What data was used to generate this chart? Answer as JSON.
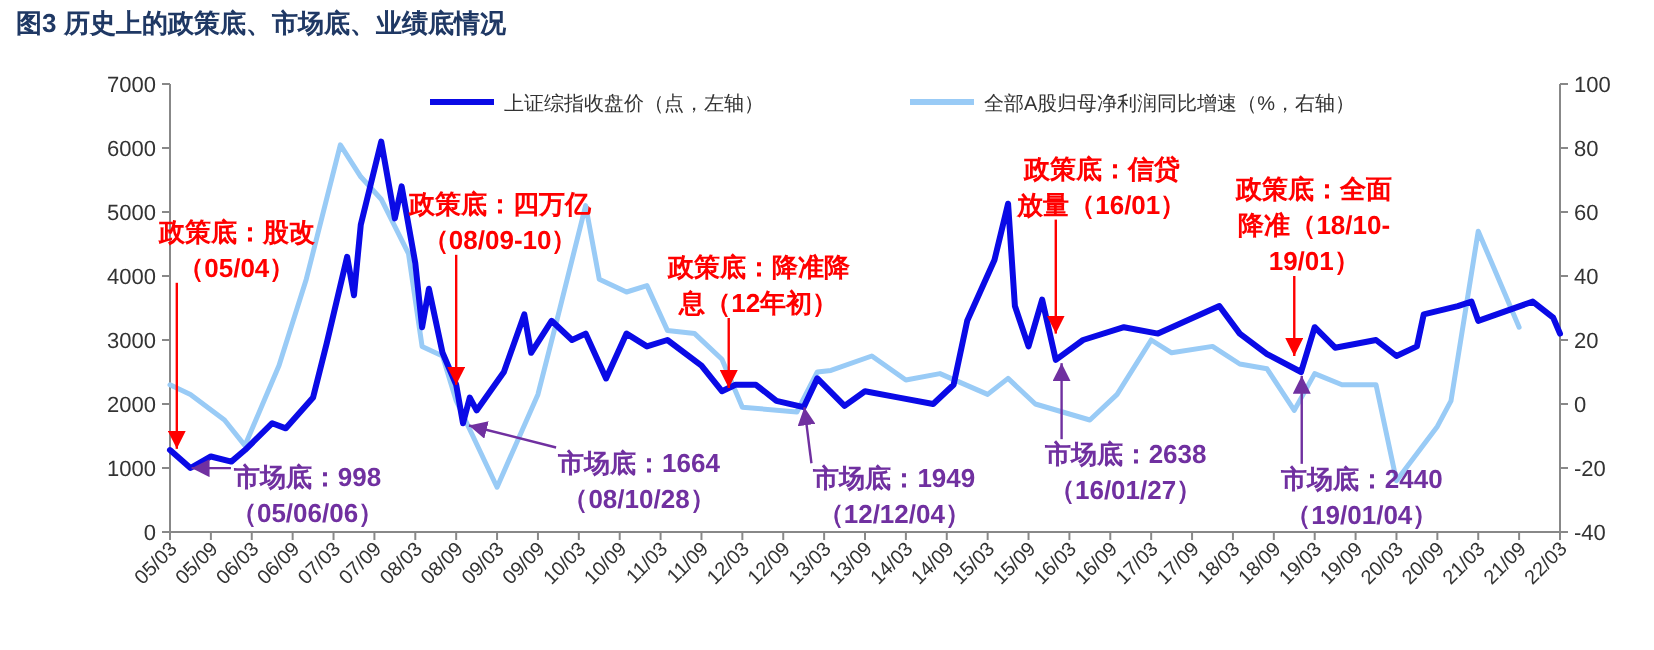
{
  "chart_data": {
    "type": "line",
    "title": "图3  历史上的政策底、市场底、业绩底情况",
    "xlim": [
      "2005-03",
      "2022-03"
    ],
    "xticks": [
      {
        "value": "2005-03",
        "label": "05/03"
      },
      {
        "value": "2005-09",
        "label": "05/09"
      },
      {
        "value": "2006-03",
        "label": "06/03"
      },
      {
        "value": "2006-09",
        "label": "06/09"
      },
      {
        "value": "2007-03",
        "label": "07/03"
      },
      {
        "value": "2007-09",
        "label": "07/09"
      },
      {
        "value": "2008-03",
        "label": "08/03"
      },
      {
        "value": "2008-09",
        "label": "08/09"
      },
      {
        "value": "2009-03",
        "label": "09/03"
      },
      {
        "value": "2009-09",
        "label": "09/09"
      },
      {
        "value": "2010-03",
        "label": "10/03"
      },
      {
        "value": "2010-09",
        "label": "10/09"
      },
      {
        "value": "2011-03",
        "label": "11/03"
      },
      {
        "value": "2011-09",
        "label": "11/09"
      },
      {
        "value": "2012-03",
        "label": "12/03"
      },
      {
        "value": "2012-09",
        "label": "12/09"
      },
      {
        "value": "2013-03",
        "label": "13/03"
      },
      {
        "value": "2013-09",
        "label": "13/09"
      },
      {
        "value": "2014-03",
        "label": "14/03"
      },
      {
        "value": "2014-09",
        "label": "14/09"
      },
      {
        "value": "2015-03",
        "label": "15/03"
      },
      {
        "value": "2015-09",
        "label": "15/09"
      },
      {
        "value": "2016-03",
        "label": "16/03"
      },
      {
        "value": "2016-09",
        "label": "16/09"
      },
      {
        "value": "2017-03",
        "label": "17/03"
      },
      {
        "value": "2017-09",
        "label": "17/09"
      },
      {
        "value": "2018-03",
        "label": "18/03"
      },
      {
        "value": "2018-09",
        "label": "18/09"
      },
      {
        "value": "2019-03",
        "label": "19/03"
      },
      {
        "value": "2019-09",
        "label": "19/09"
      },
      {
        "value": "2020-03",
        "label": "20/03"
      },
      {
        "value": "2020-09",
        "label": "20/09"
      },
      {
        "value": "2021-03",
        "label": "21/03"
      },
      {
        "value": "2021-09",
        "label": "21/09"
      },
      {
        "value": "2022-03",
        "label": "22/03"
      }
    ],
    "ylim": [
      0,
      7000
    ],
    "yticks": [
      0,
      1000,
      2000,
      3000,
      4000,
      5000,
      6000,
      7000
    ],
    "y2lim": [
      -40,
      100
    ],
    "y2ticks": [
      -40,
      -20,
      0,
      20,
      40,
      60,
      80,
      100
    ],
    "grid": false,
    "legend": "top",
    "marker": "none",
    "line_style": "solid",
    "series": [
      {
        "name": "上证综指收盘价（点，左轴）",
        "color": "#0a0ae6",
        "x": [
          "2005-03",
          "2005-06",
          "2005-09",
          "2005-12",
          "2006-02",
          "2006-06",
          "2006-08",
          "2006-12",
          "2007-02",
          "2007-05",
          "2007-06",
          "2007-07",
          "2007-10",
          "2007-12",
          "2008-01",
          "2008-03",
          "2008-04",
          "2008-05",
          "2008-07",
          "2008-09",
          "2008-10",
          "2008-11",
          "2008-12",
          "2009-04",
          "2009-07",
          "2009-08",
          "2009-11",
          "2010-02",
          "2010-04",
          "2010-07",
          "2010-10",
          "2011-01",
          "2011-04",
          "2011-09",
          "2011-12",
          "2012-02",
          "2012-05",
          "2012-08",
          "2012-12",
          "2013-02",
          "2013-06",
          "2013-09",
          "2014-02",
          "2014-07",
          "2014-10",
          "2014-12",
          "2015-04",
          "2015-06",
          "2015-07",
          "2015-09",
          "2015-11",
          "2016-01",
          "2016-05",
          "2016-11",
          "2017-04",
          "2018-01",
          "2018-04",
          "2018-08",
          "2019-01",
          "2019-03",
          "2019-06",
          "2019-12",
          "2020-03",
          "2020-06",
          "2020-07",
          "2020-12",
          "2021-02",
          "2021-03",
          "2021-11",
          "2022-02",
          "2022-03"
        ],
        "values": [
          1280,
          1000,
          1180,
          1100,
          1280,
          1700,
          1620,
          2100,
          2950,
          4300,
          3700,
          4800,
          6100,
          4900,
          5400,
          4200,
          3200,
          3800,
          2800,
          2300,
          1700,
          2100,
          1900,
          2500,
          3400,
          2800,
          3300,
          3000,
          3100,
          2400,
          3100,
          2900,
          3000,
          2600,
          2200,
          2300,
          2300,
          2050,
          1950,
          2400,
          1970,
          2200,
          2100,
          2000,
          2300,
          3300,
          4250,
          5130,
          3530,
          2900,
          3630,
          2690,
          3000,
          3200,
          3100,
          3530,
          3100,
          2780,
          2500,
          3200,
          2880,
          3000,
          2750,
          2900,
          3400,
          3530,
          3600,
          3300,
          3600,
          3350,
          3100
        ]
      },
      {
        "name": "全部A股归母净利润同比增速（%，右轴）",
        "color": "#99cbf6",
        "axis": "y2",
        "x": [
          "2005-03",
          "2005-06",
          "2005-11",
          "2006-02",
          "2006-07",
          "2006-11",
          "2007-04",
          "2007-07",
          "2007-10",
          "2008-02",
          "2008-04",
          "2008-07",
          "2008-09",
          "2009-03",
          "2009-09",
          "2009-12",
          "2010-04",
          "2010-06",
          "2010-10",
          "2011-01",
          "2011-04",
          "2011-08",
          "2011-12",
          "2012-03",
          "2012-11",
          "2013-02",
          "2013-04",
          "2013-10",
          "2014-03",
          "2014-08",
          "2015-03",
          "2015-06",
          "2015-10",
          "2016-02",
          "2016-06",
          "2016-10",
          "2017-03",
          "2017-06",
          "2017-12",
          "2018-04",
          "2018-08",
          "2018-12",
          "2019-03",
          "2019-07",
          "2019-12",
          "2020-03",
          "2020-09",
          "2020-11",
          "2021-03",
          "2021-09"
        ],
        "values": [
          6,
          3,
          -5,
          -13,
          12,
          39,
          81,
          71,
          64,
          47,
          18,
          15,
          1,
          -26,
          3,
          28,
          62,
          39,
          35,
          37,
          23,
          22,
          14,
          -1,
          -2.5,
          10,
          10.5,
          15,
          7.5,
          9.5,
          3,
          8,
          0,
          -2.5,
          -5,
          3,
          20,
          16,
          18,
          12.5,
          11,
          -2,
          9.5,
          6,
          6,
          -24,
          -7,
          1,
          54,
          24
        ]
      }
    ],
    "annotations": [
      {
        "text": "政策底：股改（05/04）",
        "x": "2005-04",
        "y": 1300
      },
      {
        "text": "市场底：998（05/06/06）",
        "x": "2005-06-06",
        "y": 998
      },
      {
        "text": "政策底：四万亿（08/09-10）",
        "x": "2008-09",
        "y": 2300
      },
      {
        "text": "市场底：1664（08/10/28）",
        "x": "2008-10-28",
        "y": 1664
      },
      {
        "text": "政策底：降准降息（12年初）",
        "x": "2012-01",
        "y": 2250
      },
      {
        "text": "市场底：1949（12/12/04）",
        "x": "2012-12-04",
        "y": 1949
      },
      {
        "text": "政策底：信贷放量（16/01）",
        "x": "2016-01",
        "y": 3100
      },
      {
        "text": "市场底：2638（16/01/27）",
        "x": "2016-01-27",
        "y": 2638
      },
      {
        "text": "政策底：全面降准（18/10-19/01）",
        "x": "2018-12",
        "y": 2750
      },
      {
        "text": "市场底：2440（19/01/04）",
        "x": "2019-01-04",
        "y": 2440
      }
    ]
  }
}
